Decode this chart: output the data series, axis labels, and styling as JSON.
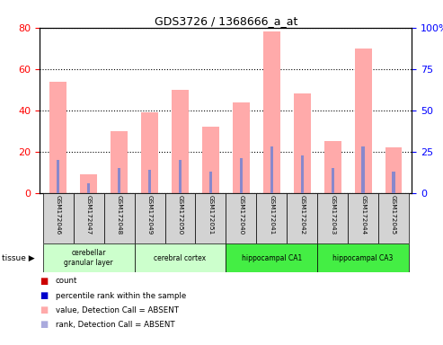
{
  "title": "GDS3726 / 1368666_a_at",
  "samples": [
    "GSM172046",
    "GSM172047",
    "GSM172048",
    "GSM172049",
    "GSM172050",
    "GSM172051",
    "GSM172040",
    "GSM172041",
    "GSM172042",
    "GSM172043",
    "GSM172044",
    "GSM172045"
  ],
  "pink_bars": [
    54,
    9,
    30,
    39,
    50,
    32,
    44,
    78,
    48,
    25,
    70,
    22
  ],
  "blue_bars": [
    20,
    6,
    15,
    14,
    20,
    13,
    21,
    28,
    23,
    15,
    28,
    13
  ],
  "left_ylim": [
    0,
    80
  ],
  "right_ylim": [
    0,
    100
  ],
  "left_yticks": [
    0,
    20,
    40,
    60,
    80
  ],
  "right_yticks": [
    0,
    25,
    50,
    75,
    100
  ],
  "tissue_groups": [
    {
      "label": "cerebellar\ngranular layer",
      "start": 0,
      "end": 3,
      "color": "#ccffcc"
    },
    {
      "label": "cerebral cortex",
      "start": 3,
      "end": 6,
      "color": "#ccffcc"
    },
    {
      "label": "hippocampal CA1",
      "start": 6,
      "end": 9,
      "color": "#44ee44"
    },
    {
      "label": "hippocampal CA3",
      "start": 9,
      "end": 12,
      "color": "#44ee44"
    }
  ],
  "bar_area_bg": "#ffffff",
  "sample_area_bg": "#d3d3d3",
  "pink_color": "#ffaaaa",
  "blue_color": "#8888cc",
  "legend_items": [
    {
      "color": "#cc0000",
      "label": "count"
    },
    {
      "color": "#0000cc",
      "label": "percentile rank within the sample"
    },
    {
      "color": "#ffaaaa",
      "label": "value, Detection Call = ABSENT"
    },
    {
      "color": "#aaaadd",
      "label": "rank, Detection Call = ABSENT"
    }
  ]
}
